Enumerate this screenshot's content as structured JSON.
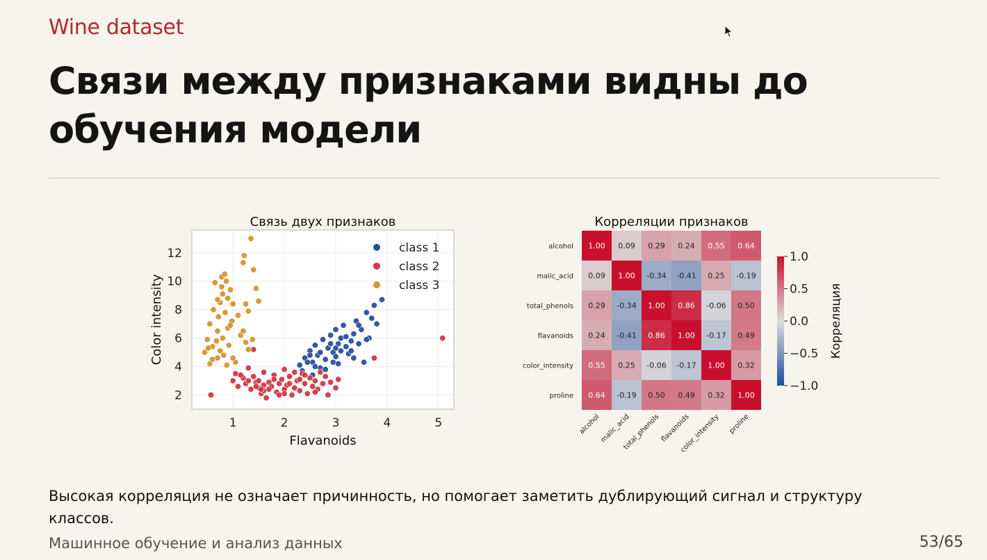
{
  "slide": {
    "kicker": "Wine dataset",
    "title": "Связи между признаками видны до обучения модели",
    "footnote": "Высокая корреляция не означает причинность, но помогает заметить дублирующий сигнал и структуру классов.",
    "footer_left": "Машинное обучение и анализ данных",
    "page": "53/65"
  },
  "colors": {
    "accent": "#b3282d",
    "class1": "#2a4ea0",
    "class2": "#cc3a44",
    "class3": "#d69432"
  },
  "chart_data": [
    {
      "type": "scatter",
      "title": "Связь двух признаков",
      "xlabel": "Flavanoids",
      "ylabel": "Color intensity",
      "xlim": [
        0.2,
        5.3
      ],
      "ylim": [
        1.0,
        13.6
      ],
      "xticks": [
        1,
        2,
        3,
        4,
        5
      ],
      "yticks": [
        2,
        4,
        6,
        8,
        10,
        12
      ],
      "grid": true,
      "legend_position": "top-right",
      "series": [
        {
          "name": "class 1",
          "color": "#2a4ea0",
          "points": [
            [
              2.3,
              4.1
            ],
            [
              2.4,
              4.6
            ],
            [
              2.5,
              5.1
            ],
            [
              2.55,
              4.3
            ],
            [
              2.6,
              5.5
            ],
            [
              2.65,
              4.8
            ],
            [
              2.7,
              3.9
            ],
            [
              2.75,
              5.9
            ],
            [
              2.8,
              4.5
            ],
            [
              2.85,
              5.3
            ],
            [
              2.9,
              6.2
            ],
            [
              2.95,
              5.0
            ],
            [
              3.0,
              4.7
            ],
            [
              3.0,
              6.6
            ],
            [
              3.05,
              5.6
            ],
            [
              3.1,
              6.0
            ],
            [
              3.1,
              5.1
            ],
            [
              3.15,
              6.9
            ],
            [
              3.2,
              5.4
            ],
            [
              3.25,
              4.9
            ],
            [
              3.3,
              5.8
            ],
            [
              3.35,
              6.3
            ],
            [
              3.4,
              7.2
            ],
            [
              3.45,
              5.6
            ],
            [
              3.5,
              6.6
            ],
            [
              3.55,
              4.3
            ],
            [
              3.6,
              7.8
            ],
            [
              3.65,
              6.0
            ],
            [
              3.7,
              7.4
            ],
            [
              3.75,
              8.3
            ],
            [
              3.8,
              7.0
            ],
            [
              3.9,
              8.7
            ],
            [
              2.45,
              4.3
            ],
            [
              2.6,
              4.0
            ],
            [
              2.7,
              5.0
            ],
            [
              2.9,
              5.6
            ],
            [
              2.95,
              4.3
            ],
            [
              3.05,
              4.2
            ],
            [
              3.2,
              6.1
            ],
            [
              3.3,
              5.1
            ],
            [
              2.35,
              3.7
            ],
            [
              2.55,
              3.4
            ],
            [
              2.8,
              3.8
            ],
            [
              3.35,
              4.6
            ],
            [
              3.6,
              5.9
            ],
            [
              2.5,
              4.8
            ],
            [
              3.0,
              5.3
            ],
            [
              3.45,
              6.9
            ]
          ]
        },
        {
          "name": "class 2",
          "color": "#cc3a44",
          "points": [
            [
              0.57,
              2.0
            ],
            [
              1.0,
              3.0
            ],
            [
              1.05,
              3.5
            ],
            [
              1.1,
              2.6
            ],
            [
              1.2,
              3.2
            ],
            [
              1.25,
              2.8
            ],
            [
              1.3,
              3.9
            ],
            [
              1.35,
              2.4
            ],
            [
              1.4,
              3.3
            ],
            [
              1.45,
              2.9
            ],
            [
              1.5,
              2.5
            ],
            [
              1.55,
              2.1
            ],
            [
              1.6,
              3.6
            ],
            [
              1.6,
              2.3
            ],
            [
              1.65,
              1.8
            ],
            [
              1.7,
              2.9
            ],
            [
              1.75,
              2.6
            ],
            [
              1.8,
              3.4
            ],
            [
              1.85,
              2.2
            ],
            [
              1.9,
              2.8
            ],
            [
              1.95,
              3.1
            ],
            [
              2.0,
              2.4
            ],
            [
              2.0,
              3.8
            ],
            [
              2.05,
              2.7
            ],
            [
              2.1,
              3.3
            ],
            [
              2.15,
              2.0
            ],
            [
              2.2,
              2.5
            ],
            [
              2.25,
              3.0
            ],
            [
              2.3,
              2.3
            ],
            [
              2.35,
              3.5
            ],
            [
              2.4,
              2.8
            ],
            [
              2.45,
              2.1
            ],
            [
              2.5,
              3.2
            ],
            [
              2.55,
              2.6
            ],
            [
              2.6,
              3.0
            ],
            [
              2.65,
              2.4
            ],
            [
              2.7,
              3.6
            ],
            [
              2.75,
              2.8
            ],
            [
              2.8,
              3.3
            ],
            [
              2.85,
              2.0
            ],
            [
              2.9,
              2.9
            ],
            [
              3.0,
              2.5
            ],
            [
              3.05,
              3.1
            ],
            [
              1.5,
              3.0
            ],
            [
              1.7,
              2.4
            ],
            [
              1.9,
              2.0
            ],
            [
              1.3,
              3.0
            ],
            [
              1.45,
              2.6
            ],
            [
              2.1,
              2.8
            ],
            [
              2.3,
              3.1
            ],
            [
              1.6,
              2.7
            ],
            [
              1.8,
              3.1
            ],
            [
              2.0,
              2.1
            ],
            [
              2.4,
              3.4
            ],
            [
              2.6,
              2.2
            ],
            [
              3.75,
              4.6
            ],
            [
              1.4,
              5.2
            ],
            [
              1.15,
              3.4
            ],
            [
              1.55,
              2.4
            ],
            [
              2.2,
              3.6
            ],
            [
              5.08,
              6.0
            ]
          ]
        },
        {
          "name": "class 3",
          "color": "#d69432",
          "points": [
            [
              0.45,
              5.0
            ],
            [
              0.5,
              5.9
            ],
            [
              0.55,
              4.2
            ],
            [
              0.55,
              7.0
            ],
            [
              0.6,
              5.4
            ],
            [
              0.62,
              8.0
            ],
            [
              0.65,
              9.9
            ],
            [
              0.7,
              4.6
            ],
            [
              0.7,
              6.5
            ],
            [
              0.72,
              7.5
            ],
            [
              0.75,
              5.1
            ],
            [
              0.75,
              8.5
            ],
            [
              0.78,
              10.3
            ],
            [
              0.8,
              6.0
            ],
            [
              0.8,
              9.1
            ],
            [
              0.82,
              4.8
            ],
            [
              0.85,
              7.8
            ],
            [
              0.87,
              10.0
            ],
            [
              0.9,
              8.8
            ],
            [
              0.92,
              5.5
            ],
            [
              0.95,
              9.4
            ],
            [
              0.98,
              7.2
            ],
            [
              1.0,
              8.4
            ],
            [
              1.05,
              4.3
            ],
            [
              1.1,
              7.6
            ],
            [
              1.15,
              6.2
            ],
            [
              1.2,
              11.3
            ],
            [
              1.25,
              5.7
            ],
            [
              1.25,
              8.4
            ],
            [
              1.3,
              7.9
            ],
            [
              1.35,
              13.0
            ],
            [
              1.4,
              10.8
            ],
            [
              1.45,
              9.5
            ],
            [
              1.5,
              8.6
            ],
            [
              1.38,
              5.9
            ],
            [
              1.3,
              5.2
            ],
            [
              1.2,
              6.5
            ],
            [
              0.6,
              4.5
            ],
            [
              0.88,
              4.1
            ],
            [
              0.9,
              6.7
            ],
            [
              0.68,
              5.8
            ],
            [
              0.78,
              9.6
            ],
            [
              0.7,
              8.7
            ],
            [
              1.0,
              4.6
            ],
            [
              1.22,
              11.8
            ],
            [
              0.95,
              6.9
            ],
            [
              0.84,
              10.5
            ],
            [
              0.52,
              5.3
            ]
          ]
        }
      ]
    },
    {
      "type": "heatmap",
      "title": "Корреляции признаков",
      "row_labels": [
        "alcohol",
        "malic_acid",
        "total_phenols",
        "flavanoids",
        "color_intensity",
        "proline"
      ],
      "col_labels": [
        "alcohol",
        "malic_acid",
        "total_phenols",
        "flavanoids",
        "color_intensity",
        "proline"
      ],
      "values": [
        [
          1.0,
          0.09,
          0.29,
          0.24,
          0.55,
          0.64
        ],
        [
          0.09,
          1.0,
          -0.34,
          -0.41,
          0.25,
          -0.19
        ],
        [
          0.29,
          -0.34,
          1.0,
          0.86,
          -0.06,
          0.5
        ],
        [
          0.24,
          -0.41,
          0.86,
          1.0,
          -0.17,
          0.49
        ],
        [
          0.55,
          0.25,
          -0.06,
          -0.17,
          1.0,
          0.32
        ],
        [
          0.64,
          -0.19,
          0.5,
          0.49,
          0.32,
          1.0
        ]
      ],
      "colorbar_label": "Корреляция",
      "vmin": -1.0,
      "vmax": 1.0,
      "colorbar_ticks": [
        "1.0",
        "0.5",
        "0.0",
        "−0.5",
        "−1.0"
      ],
      "colormap": {
        "low": "#1e4e9c",
        "mid": "#dddddd",
        "high": "#c8102e"
      }
    }
  ]
}
